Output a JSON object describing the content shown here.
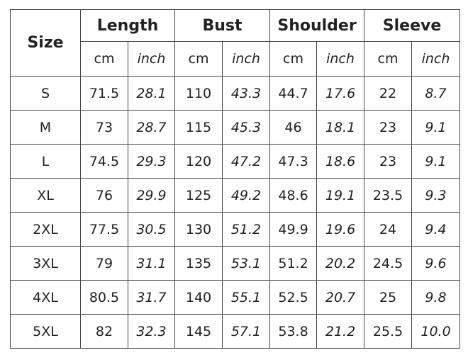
{
  "table": {
    "header": {
      "size": "Size",
      "groups": [
        "Length",
        "Bust",
        "Shoulder",
        "Sleeve"
      ],
      "units": [
        "cm",
        "inch",
        "cm",
        "inch",
        "cm",
        "inch",
        "cm",
        "inch"
      ]
    },
    "rows": [
      [
        "S",
        "71.5",
        "28.1",
        "110",
        "43.3",
        "44.7",
        "17.6",
        "22",
        "8.7"
      ],
      [
        "M",
        "73",
        "28.7",
        "115",
        "45.3",
        "46",
        "18.1",
        "23",
        "9.1"
      ],
      [
        "L",
        "74.5",
        "29.3",
        "120",
        "47.2",
        "47.3",
        "18.6",
        "23",
        "9.1"
      ],
      [
        "XL",
        "76",
        "29.9",
        "125",
        "49.2",
        "48.6",
        "19.1",
        "23.5",
        "9.3"
      ],
      [
        "2XL",
        "77.5",
        "30.5",
        "130",
        "51.2",
        "49.9",
        "19.6",
        "24",
        "9.4"
      ],
      [
        "3XL",
        "79",
        "31.1",
        "135",
        "53.1",
        "51.2",
        "20.2",
        "24.5",
        "9.6"
      ],
      [
        "4XL",
        "80.5",
        "31.7",
        "140",
        "55.1",
        "52.5",
        "20.7",
        "25",
        "9.8"
      ],
      [
        "5XL",
        "82",
        "32.3",
        "145",
        "57.1",
        "53.8",
        "21.2",
        "25.5",
        "10.0"
      ]
    ]
  }
}
